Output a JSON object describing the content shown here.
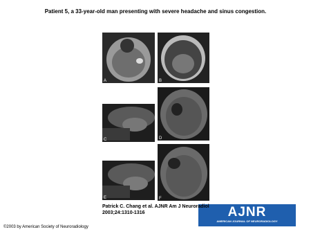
{
  "header": {
    "title": "Patient 5, a 33-year-old man presenting with severe headache and sinus congestion."
  },
  "figure": {
    "panels": [
      {
        "label": "A"
      },
      {
        "label": "B"
      },
      {
        "label": "C"
      },
      {
        "label": "D"
      },
      {
        "label": "E"
      },
      {
        "label": "F"
      }
    ]
  },
  "citation": {
    "line1": "Patrick C. Chang et al. AJNR Am J Neuroradiol",
    "line2": "2003;24:1310-1316"
  },
  "logo": {
    "name": "AJNR",
    "subtitle": "AMERICAN JOURNAL OF NEURORADIOLOGY"
  },
  "footer": {
    "copyright": "©2003 by American Society of Neuroradiology"
  }
}
